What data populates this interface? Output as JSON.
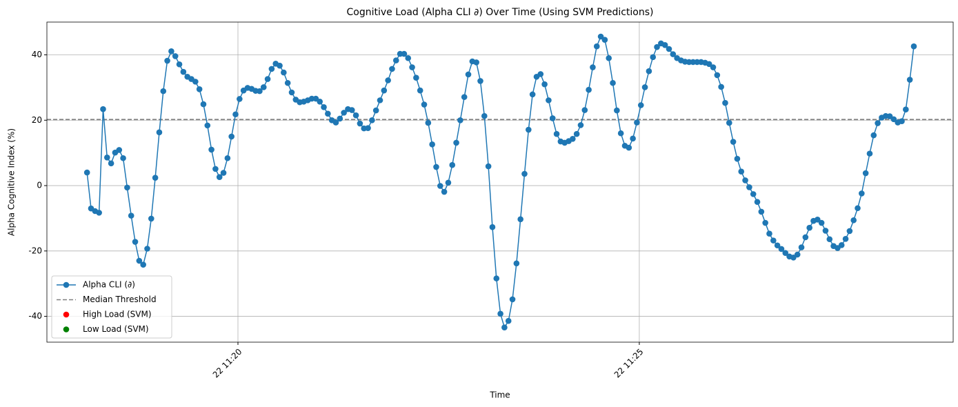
{
  "chart_data": {
    "type": "line",
    "title": "Cognitive Load (Alpha CLI ∂) Over Time (Using SVM Predictions)",
    "x_label": "Time",
    "y_label": "Alpha Cognitive Index (%)",
    "x": [
      18.12,
      18.17,
      18.22,
      18.27,
      18.32,
      18.37,
      18.42,
      18.47,
      18.52,
      18.57,
      18.62,
      18.67,
      18.72,
      18.77,
      18.82,
      18.87,
      18.92,
      18.97,
      19.02,
      19.07,
      19.12,
      19.17,
      19.22,
      19.27,
      19.32,
      19.37,
      19.42,
      19.47,
      19.52,
      19.57,
      19.62,
      19.67,
      19.72,
      19.77,
      19.82,
      19.87,
      19.92,
      19.97,
      20.02,
      20.07,
      20.12,
      20.17,
      20.22,
      20.27,
      20.32,
      20.37,
      20.42,
      20.47,
      20.52,
      20.57,
      20.62,
      20.67,
      20.72,
      20.77,
      20.82,
      20.87,
      20.92,
      20.97,
      21.02,
      21.07,
      21.12,
      21.17,
      21.22,
      21.27,
      21.32,
      21.37,
      21.42,
      21.47,
      21.52,
      21.57,
      21.62,
      21.67,
      21.72,
      21.77,
      21.82,
      21.87,
      21.92,
      21.97,
      22.02,
      22.07,
      22.12,
      22.17,
      22.22,
      22.27,
      22.32,
      22.37,
      22.42,
      22.47,
      22.52,
      22.57,
      22.62,
      22.67,
      22.72,
      22.77,
      22.82,
      22.87,
      22.92,
      22.97,
      23.02,
      23.07,
      23.12,
      23.17,
      23.22,
      23.27,
      23.32,
      23.37,
      23.42,
      23.47,
      23.52,
      23.57,
      23.62,
      23.67,
      23.72,
      23.77,
      23.82,
      23.87,
      23.92,
      23.97,
      24.02,
      24.07,
      24.12,
      24.17,
      24.22,
      24.27,
      24.32,
      24.37,
      24.42,
      24.47,
      24.52,
      24.57,
      24.62,
      24.67,
      24.72,
      24.77,
      24.82,
      24.87,
      24.92,
      24.97,
      25.02,
      25.07,
      25.12,
      25.17,
      25.22,
      25.27,
      25.32,
      25.37,
      25.42,
      25.47,
      25.52,
      25.57,
      25.62,
      25.67,
      25.72,
      25.77,
      25.82,
      25.87,
      25.92,
      25.97,
      26.02,
      26.07,
      26.12,
      26.17,
      26.22,
      26.27,
      26.32,
      26.37,
      26.42,
      26.47,
      26.52,
      26.57,
      26.62,
      26.67,
      26.72,
      26.77,
      26.82,
      26.87,
      26.92,
      26.97,
      27.02,
      27.07,
      27.12,
      27.17,
      27.22,
      27.27,
      27.32,
      27.37,
      27.42,
      27.47,
      27.52,
      27.57,
      27.62,
      27.67,
      27.72,
      27.77,
      27.82,
      27.87,
      27.92,
      27.97,
      28.02,
      28.07,
      28.12,
      28.17,
      28.22,
      28.27,
      28.32,
      28.37,
      28.42
    ],
    "series": [
      {
        "name": "Alpha CLI (∂)",
        "color": "#1f77b4",
        "marker": "circle",
        "values": [
          4.0,
          -7.0,
          -7.8,
          -8.3,
          23.4,
          8.6,
          6.8,
          10.1,
          10.9,
          8.4,
          -0.6,
          -9.2,
          -17.2,
          -23.0,
          -24.2,
          -19.3,
          -10.1,
          2.4,
          16.3,
          28.9,
          38.2,
          41.1,
          39.6,
          37.1,
          34.8,
          33.3,
          32.6,
          31.8,
          29.5,
          24.9,
          18.4,
          11.0,
          5.1,
          2.6,
          3.9,
          8.4,
          15.0,
          21.8,
          26.5,
          29.1,
          29.9,
          29.6,
          29.0,
          28.9,
          30.1,
          32.6,
          35.7,
          37.3,
          36.7,
          34.6,
          31.4,
          28.5,
          26.3,
          25.5,
          25.7,
          26.1,
          26.6,
          26.6,
          25.7,
          24.0,
          22.0,
          20.0,
          19.3,
          20.5,
          22.3,
          23.4,
          23.1,
          21.5,
          19.0,
          17.5,
          17.6,
          20.0,
          23.0,
          26.1,
          29.1,
          32.2,
          35.7,
          38.3,
          40.3,
          40.3,
          39.0,
          36.2,
          33.0,
          29.1,
          24.8,
          19.2,
          12.6,
          5.7,
          -0.1,
          -1.9,
          0.9,
          6.3,
          13.1,
          20.0,
          27.1,
          34.0,
          38.0,
          37.7,
          32.0,
          21.3,
          5.9,
          -12.7,
          -28.4,
          -39.2,
          -43.4,
          -41.4,
          -34.8,
          -23.8,
          -10.3,
          3.6,
          17.1,
          27.9,
          33.3,
          34.1,
          31.0,
          26.1,
          20.6,
          15.8,
          13.5,
          13.1,
          13.6,
          14.3,
          15.8,
          18.5,
          23.1,
          29.3,
          36.2,
          42.6,
          45.6,
          44.6,
          39.0,
          31.4,
          23.0,
          16.0,
          12.2,
          11.6,
          14.4,
          19.3,
          24.6,
          30.1,
          35.0,
          39.3,
          42.4,
          43.5,
          43.0,
          41.8,
          40.2,
          39.0,
          38.3,
          37.9,
          37.8,
          37.8,
          37.8,
          37.8,
          37.6,
          37.2,
          36.2,
          33.8,
          30.2,
          25.3,
          19.2,
          13.4,
          8.2,
          4.3,
          1.6,
          -0.5,
          -2.6,
          -5.0,
          -8.0,
          -11.4,
          -14.7,
          -16.8,
          -18.3,
          -19.4,
          -20.6,
          -21.7,
          -22.0,
          -21.1,
          -18.9,
          -15.8,
          -12.9,
          -10.8,
          -10.4,
          -11.4,
          -13.8,
          -16.4,
          -18.5,
          -19.1,
          -18.2,
          -16.3,
          -13.9,
          -10.6,
          -6.9,
          -2.4,
          3.8,
          9.8,
          15.4,
          19.1,
          20.8,
          21.3,
          21.2,
          20.3,
          19.3,
          19.7,
          23.3,
          32.4,
          42.6
        ]
      }
    ],
    "hlines": [
      {
        "name": "Median Threshold",
        "value": 20.2,
        "color": "#808080",
        "dashed": true
      }
    ],
    "scatter_series": [
      {
        "name": "High Load (SVM)",
        "color": "#ff0000",
        "values": []
      },
      {
        "name": "Low Load (SVM)",
        "color": "#008000",
        "values": []
      }
    ],
    "xlim": [
      17.62,
      28.91
    ],
    "xticks": [
      {
        "value": 20,
        "label": "22 11:20"
      },
      {
        "value": 25,
        "label": "22 11:25"
      }
    ],
    "ylim": [
      -47.9,
      50.03
    ],
    "yticks": [
      -40,
      -20,
      0,
      20,
      40
    ],
    "grid": true,
    "legend_position": "lower-left"
  }
}
